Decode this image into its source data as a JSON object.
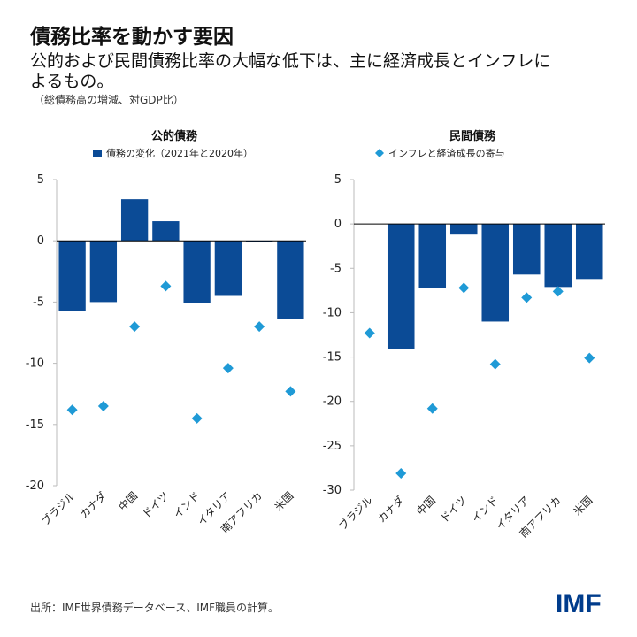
{
  "title": "債務比率を動かす要因",
  "subtitle": "公的および民間債務比率の大幅な低下は、主に経済成長とインフレによるもの。",
  "note": "（総債務高の増減、対GDP比）",
  "source": "出所：IMF世界債務データベース、IMF職員の計算。",
  "logo": "IMF",
  "colors": {
    "bar": "#0b4b96",
    "marker": "#1f9ad6",
    "axis": "#000000"
  },
  "chart_data": [
    {
      "type": "bar",
      "title": "公的債務",
      "categories": [
        "ブラジル",
        "カナダ",
        "中国",
        "ドイツ",
        "インド",
        "イタリア",
        "南アフリカ",
        "米国"
      ],
      "ylim": [
        -20,
        5
      ],
      "yticks": [
        5,
        0,
        -5,
        -10,
        -15,
        -20
      ],
      "legend": "top-center",
      "series": [
        {
          "name": "債務の変化（2021年と2020年）",
          "type": "bar",
          "values": [
            -5.7,
            -5.0,
            3.4,
            1.6,
            -5.1,
            -4.5,
            -0.1,
            -6.4
          ]
        },
        {
          "name": "インフレと経済成長の寄与",
          "type": "scatter",
          "marker": "diamond",
          "values": [
            -13.8,
            -13.5,
            -7.0,
            -3.7,
            -14.5,
            -10.4,
            -7.0,
            -12.3
          ]
        }
      ]
    },
    {
      "type": "bar",
      "title": "民間債務",
      "categories": [
        "ブラジル",
        "カナダ",
        "中国",
        "ドイツ",
        "インド",
        "イタリア",
        "南アフリカ",
        "米国"
      ],
      "ylim": [
        -30,
        5
      ],
      "yticks": [
        5,
        0,
        -5,
        -10,
        -15,
        -20,
        -25,
        -30
      ],
      "legend": "top-center",
      "series": [
        {
          "name": "債務の変化（2021年と2020年）",
          "type": "bar",
          "values": [
            0.0,
            -14.1,
            -7.2,
            -1.2,
            -11.0,
            -5.7,
            -7.1,
            -6.2
          ]
        },
        {
          "name": "インフレと経済成長の寄与",
          "type": "scatter",
          "marker": "diamond",
          "values": [
            -12.3,
            -28.1,
            -20.8,
            -7.2,
            -15.8,
            -8.3,
            -7.6,
            -15.1
          ]
        }
      ]
    }
  ]
}
